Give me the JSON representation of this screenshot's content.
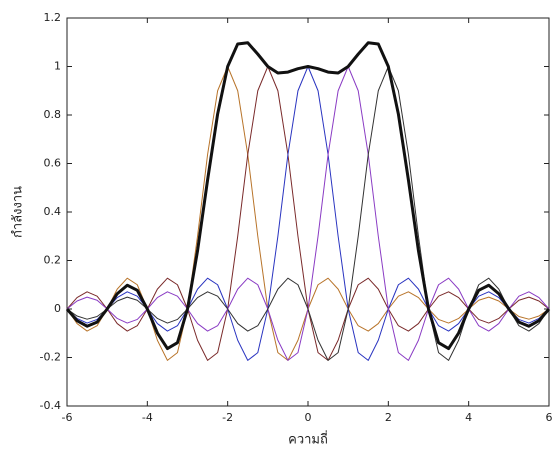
{
  "chart_data": {
    "type": "line",
    "xlabel": "ความถี่",
    "ylabel": "กำลังงาน",
    "x": [
      -6,
      -5.75,
      -5.5,
      -5.25,
      -5,
      -4.75,
      -4.5,
      -4.25,
      -4,
      -3.75,
      -3.5,
      -3.25,
      -3,
      -2.75,
      -2.5,
      -2.25,
      -2,
      -1.75,
      -1.5,
      -1.25,
      -1,
      -0.75,
      -0.5,
      -0.25,
      0,
      0.25,
      0.5,
      0.75,
      1,
      1.25,
      1.5,
      1.75,
      2,
      2.25,
      2.5,
      2.75,
      3,
      3.25,
      3.5,
      3.75,
      4,
      4.25,
      4.5,
      4.75,
      5,
      5.25,
      5.5,
      5.75,
      6
    ],
    "series": [
      {
        "color": "#b8742a",
        "width": 1,
        "values": [
          0,
          -0.06,
          -0.091,
          -0.069,
          0,
          0.082,
          0.127,
          0.1,
          0,
          -0.129,
          -0.212,
          -0.18,
          0,
          0.3,
          0.637,
          0.9,
          1,
          0.9,
          0.637,
          0.3,
          0,
          -0.18,
          -0.212,
          -0.129,
          0,
          0.1,
          0.127,
          0.082,
          0,
          -0.069,
          -0.091,
          -0.06,
          0,
          0.053,
          0.071,
          0.047,
          0,
          -0.043,
          -0.058,
          -0.039,
          0,
          0.036,
          0.049,
          0.033,
          0,
          -0.031,
          -0.042,
          -0.029,
          0
        ]
      },
      {
        "color": "#7a2a2a",
        "width": 1,
        "values": [
          0,
          0.047,
          0.071,
          0.053,
          0,
          -0.06,
          -0.091,
          -0.069,
          0,
          0.082,
          0.127,
          0.1,
          0,
          -0.129,
          -0.212,
          -0.18,
          0,
          0.3,
          0.637,
          0.9,
          1,
          0.9,
          0.637,
          0.3,
          0,
          -0.18,
          -0.212,
          -0.129,
          0,
          0.1,
          0.127,
          0.082,
          0,
          -0.069,
          -0.091,
          -0.06,
          0,
          0.053,
          0.071,
          0.047,
          0,
          -0.043,
          -0.058,
          -0.039,
          0,
          0.036,
          0.049,
          0.033,
          0
        ]
      },
      {
        "color": "#2a34c0",
        "width": 1,
        "values": [
          0,
          -0.039,
          -0.058,
          -0.043,
          0,
          0.047,
          0.071,
          0.053,
          0,
          -0.06,
          -0.091,
          -0.069,
          0,
          0.082,
          0.127,
          0.1,
          0,
          -0.129,
          -0.212,
          -0.18,
          0,
          0.3,
          0.637,
          0.9,
          1,
          0.9,
          0.637,
          0.3,
          0,
          -0.18,
          -0.212,
          -0.129,
          0,
          0.1,
          0.127,
          0.082,
          0,
          -0.069,
          -0.091,
          -0.06,
          0,
          0.053,
          0.071,
          0.047,
          0,
          -0.043,
          -0.058,
          -0.039,
          0
        ]
      },
      {
        "color": "#8a3cc4",
        "width": 1,
        "values": [
          0,
          0.033,
          0.049,
          0.036,
          0,
          -0.039,
          -0.058,
          -0.043,
          0,
          0.047,
          0.071,
          0.053,
          0,
          -0.06,
          -0.091,
          -0.069,
          0,
          0.082,
          0.127,
          0.1,
          0,
          -0.129,
          -0.212,
          -0.18,
          0,
          0.3,
          0.637,
          0.9,
          1,
          0.9,
          0.637,
          0.3,
          0,
          -0.18,
          -0.212,
          -0.129,
          0,
          0.1,
          0.127,
          0.082,
          0,
          -0.069,
          -0.091,
          -0.06,
          0,
          0.053,
          0.071,
          0.047,
          0
        ]
      },
      {
        "color": "#333333",
        "width": 1,
        "values": [
          0,
          -0.029,
          -0.042,
          -0.031,
          0,
          0.033,
          0.049,
          0.036,
          0,
          -0.039,
          -0.058,
          -0.043,
          0,
          0.047,
          0.071,
          0.053,
          0,
          -0.06,
          -0.091,
          -0.069,
          0,
          0.082,
          0.127,
          0.1,
          0,
          -0.129,
          -0.212,
          -0.18,
          0,
          0.3,
          0.637,
          0.9,
          1,
          0.9,
          0.637,
          0.3,
          0,
          -0.18,
          -0.212,
          -0.129,
          0,
          0.1,
          0.127,
          0.082,
          0,
          -0.069,
          -0.091,
          -0.06,
          0
        ]
      },
      {
        "color": "#111111",
        "width": 3,
        "values": [
          0,
          -0.048,
          -0.071,
          -0.054,
          0,
          0.063,
          0.098,
          0.077,
          0,
          -0.099,
          -0.163,
          -0.139,
          0,
          0.24,
          0.532,
          0.804,
          1,
          1.093,
          1.098,
          1.051,
          1,
          0.973,
          0.977,
          0.991,
          1,
          0.991,
          0.977,
          0.973,
          1,
          1.051,
          1.098,
          1.093,
          1,
          0.804,
          0.532,
          0.24,
          0,
          -0.139,
          -0.163,
          -0.099,
          0,
          0.077,
          0.098,
          0.063,
          0,
          -0.054,
          -0.071,
          -0.048,
          0
        ]
      }
    ],
    "xlim": [
      -6,
      6
    ],
    "xticks": [
      -6,
      -4,
      -2,
      0,
      2,
      4,
      6
    ],
    "ylim": [
      -0.4,
      1.2
    ],
    "yticks": [
      -0.4,
      -0.2,
      0,
      0.2,
      0.4,
      0.6,
      0.8,
      1,
      1.2
    ],
    "grid": false
  }
}
